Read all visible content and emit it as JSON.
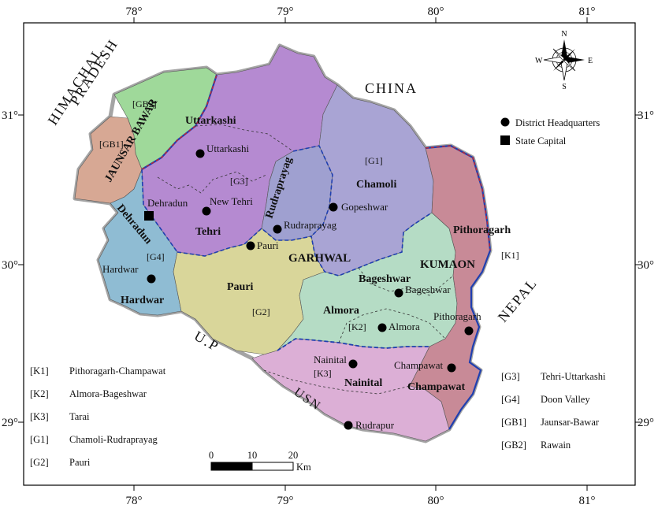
{
  "ticks": {
    "lon": [
      "78°",
      "79°",
      "80°",
      "81°"
    ],
    "lat": [
      "31°",
      "30°",
      "29°"
    ]
  },
  "neighbors": {
    "china": "CHINA",
    "nepal": "NEPAL",
    "himachal_1": "HIMACHAL",
    "himachal_2": "PRADESH",
    "up": "U.P",
    "usn": "USN"
  },
  "regions": {
    "garhwal": "GARHWAL",
    "kumaon": "KUMAON",
    "jaunsar_bawar": "JAUNSAR BAWAR"
  },
  "districts": {
    "uttarkashi": "Uttarkashi",
    "tehri": "Tehri",
    "rudraprayag": "Rudraprayag",
    "chamoli": "Chamoli",
    "dehradun": "Dehradun",
    "hardwar": "Hardwar",
    "pauri": "Pauri",
    "almora": "Almora",
    "bageshwar": "Bageshwar",
    "pithoragarh": "Pithoragarh",
    "nainital": "Nainital",
    "champawat": "Champawat"
  },
  "towns": {
    "uttarkashi": "Uttarkashi",
    "new_tehri": "New Tehri",
    "dehradun": "Dehradun",
    "rudraprayag": "Rudraprayag",
    "gopeshwar": "Gopeshwar",
    "pauri": "Pauri",
    "hardwar": "Hardwar",
    "bageshwar": "Bageshwar",
    "almora": "Almora",
    "pithoragarh": "Pithoragarh",
    "nainital": "Nainital",
    "champawat": "Champawat",
    "rudrapur": "Rudrapur"
  },
  "zones": {
    "gb2": "[GB2]",
    "gb1": "[GB1]",
    "g3": "[G3]",
    "g1": "[G1]",
    "g4": "[G4]",
    "g2": "[G2]",
    "k1": "[K1]",
    "k2": "[K2]",
    "k3": "[K3]"
  },
  "legend": {
    "hq": "District Headquarters",
    "capital": "State Capital"
  },
  "zone_legend_left": [
    {
      "code": "[K1]",
      "name": "Pithoragarh-Champawat"
    },
    {
      "code": "[K2]",
      "name": "Almora-Bageshwar"
    },
    {
      "code": "[K3]",
      "name": "Tarai"
    },
    {
      "code": "[G1]",
      "name": "Chamoli-Rudraprayag"
    },
    {
      "code": "[G2]",
      "name": "Pauri"
    }
  ],
  "zone_legend_right": [
    {
      "code": "[G3]",
      "name": "Tehri-Uttarkashi"
    },
    {
      "code": "[G4]",
      "name": "Doon Valley"
    },
    {
      "code": "[GB1]",
      "name": "Jaunsar-Bawar"
    },
    {
      "code": "[GB2]",
      "name": "Rawain"
    }
  ],
  "scale": {
    "t0": "0",
    "t1": "10",
    "t2": "20",
    "unit": "Km"
  },
  "compass": {
    "n": "N",
    "s": "S",
    "e": "E",
    "w": "W"
  },
  "colors": {
    "gb2": "#9fd99a",
    "gb1": "#d7a894",
    "g3": "#b58ad1",
    "g1": "#a9a4d4",
    "rudra": "#9fa0d0",
    "g4": "#8fbcd3",
    "g2": "#d9d69a",
    "k2": "#b5dcc5",
    "k1": "#c88a97",
    "k3": "#dcafd6",
    "outer": "#999999"
  }
}
